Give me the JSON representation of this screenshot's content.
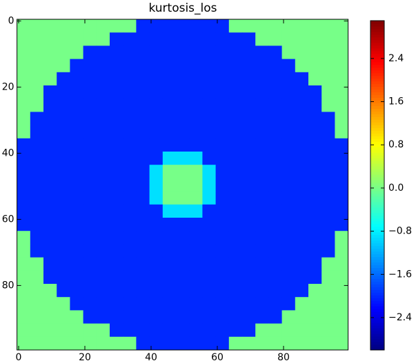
{
  "chart_data": {
    "type": "heatmap",
    "title": "kurtosis_los",
    "colormap": "jet",
    "xlim": [
      -0.5,
      99.5
    ],
    "ylim": [
      99.5,
      -0.5
    ],
    "xticks": [
      0,
      20,
      40,
      60,
      80
    ],
    "yticks": [
      0,
      20,
      40,
      60,
      80
    ],
    "values": [
      [
        0,
        0,
        0,
        0,
        0,
        0,
        0,
        0,
        0,
        -2,
        -2,
        -2,
        -2,
        -2,
        -2,
        -2,
        0,
        0,
        0,
        0,
        0,
        0,
        0,
        0,
        0
      ],
      [
        0,
        0,
        0,
        0,
        0,
        0,
        0,
        -2,
        -2,
        -2,
        -2,
        -2,
        -2,
        -2,
        -2,
        -2,
        -2,
        -2,
        0,
        0,
        0,
        0,
        0,
        0,
        0
      ],
      [
        0,
        0,
        0,
        0,
        0,
        -2,
        -2,
        -2,
        -2,
        -2,
        -2,
        -2,
        -2,
        -2,
        -2,
        -2,
        -2,
        -2,
        -2,
        -2,
        0,
        0,
        0,
        0,
        0
      ],
      [
        0,
        0,
        0,
        0,
        -2,
        -2,
        -2,
        -2,
        -2,
        -2,
        -2,
        -2,
        -2,
        -2,
        -2,
        -2,
        -2,
        -2,
        -2,
        -2,
        -2,
        0,
        0,
        0,
        0
      ],
      [
        0,
        0,
        0,
        -2,
        -2,
        -2,
        -2,
        -2,
        -2,
        -2,
        -2,
        -2,
        -2,
        -2,
        -2,
        -2,
        -2,
        -2,
        -2,
        -2,
        -2,
        -2,
        0,
        0,
        0
      ],
      [
        0,
        0,
        -2,
        -2,
        -2,
        -2,
        -2,
        -2,
        -2,
        -2,
        -2,
        -2,
        -2,
        -2,
        -2,
        -2,
        -2,
        -2,
        -2,
        -2,
        -2,
        -2,
        -2,
        0,
        0
      ],
      [
        0,
        0,
        -2,
        -2,
        -2,
        -2,
        -2,
        -2,
        -2,
        -2,
        -2,
        -2,
        -2,
        -2,
        -2,
        -2,
        -2,
        -2,
        -2,
        -2,
        -2,
        -2,
        -2,
        0,
        0
      ],
      [
        0,
        -2,
        -2,
        -2,
        -2,
        -2,
        -2,
        -2,
        -2,
        -2,
        -2,
        -2,
        -2,
        -2,
        -2,
        -2,
        -2,
        -2,
        -2,
        -2,
        -2,
        -2,
        -2,
        -2,
        0
      ],
      [
        0,
        -2,
        -2,
        -2,
        -2,
        -2,
        -2,
        -2,
        -2,
        -2,
        -2,
        -2,
        -2,
        -2,
        -2,
        -2,
        -2,
        -2,
        -2,
        -2,
        -2,
        -2,
        -2,
        -2,
        0
      ],
      [
        -2,
        -2,
        -2,
        -2,
        -2,
        -2,
        -2,
        -2,
        -2,
        -2,
        -2,
        -2,
        -2,
        -2,
        -2,
        -2,
        -2,
        -2,
        -2,
        -2,
        -2,
        -2,
        -2,
        -2,
        -2
      ],
      [
        -2,
        -2,
        -2,
        -2,
        -2,
        -2,
        -2,
        -2,
        -2,
        -2,
        -2,
        -0.9,
        -0.9,
        -0.9,
        -2,
        -2,
        -2,
        -2,
        -2,
        -2,
        -2,
        -2,
        -2,
        -2,
        -2
      ],
      [
        -2,
        -2,
        -2,
        -2,
        -2,
        -2,
        -2,
        -2,
        -2,
        -2,
        -0.9,
        0,
        0,
        0,
        -0.9,
        -2,
        -2,
        -2,
        -2,
        -2,
        -2,
        -2,
        -2,
        -2,
        -2
      ],
      [
        -2,
        -2,
        -2,
        -2,
        -2,
        -2,
        -2,
        -2,
        -2,
        -2,
        -0.9,
        0,
        0,
        0,
        -0.9,
        -2,
        -2,
        -2,
        -2,
        -2,
        -2,
        -2,
        -2,
        -2,
        -2
      ],
      [
        -2,
        -2,
        -2,
        -2,
        -2,
        -2,
        -2,
        -2,
        -2,
        -2,
        -0.9,
        0,
        0,
        0,
        -0.9,
        -2,
        -2,
        -2,
        -2,
        -2,
        -2,
        -2,
        -2,
        -2,
        -2
      ],
      [
        -2,
        -2,
        -2,
        -2,
        -2,
        -2,
        -2,
        -2,
        -2,
        -2,
        -2,
        -0.9,
        -0.9,
        -0.9,
        -2,
        -2,
        -2,
        -2,
        -2,
        -2,
        -2,
        -2,
        -2,
        -2,
        -2
      ],
      [
        -2,
        -2,
        -2,
        -2,
        -2,
        -2,
        -2,
        -2,
        -2,
        -2,
        -2,
        -2,
        -2,
        -2,
        -2,
        -2,
        -2,
        -2,
        -2,
        -2,
        -2,
        -2,
        -2,
        -2,
        -2
      ],
      [
        0,
        -2,
        -2,
        -2,
        -2,
        -2,
        -2,
        -2,
        -2,
        -2,
        -2,
        -2,
        -2,
        -2,
        -2,
        -2,
        -2,
        -2,
        -2,
        -2,
        -2,
        -2,
        -2,
        -2,
        0
      ],
      [
        0,
        -2,
        -2,
        -2,
        -2,
        -2,
        -2,
        -2,
        -2,
        -2,
        -2,
        -2,
        -2,
        -2,
        -2,
        -2,
        -2,
        -2,
        -2,
        -2,
        -2,
        -2,
        -2,
        -2,
        0
      ],
      [
        0,
        0,
        -2,
        -2,
        -2,
        -2,
        -2,
        -2,
        -2,
        -2,
        -2,
        -2,
        -2,
        -2,
        -2,
        -2,
        -2,
        -2,
        -2,
        -2,
        -2,
        -2,
        -2,
        0,
        0
      ],
      [
        0,
        0,
        -2,
        -2,
        -2,
        -2,
        -2,
        -2,
        -2,
        -2,
        -2,
        -2,
        -2,
        -2,
        -2,
        -2,
        -2,
        -2,
        -2,
        -2,
        -2,
        -2,
        -2,
        0,
        0
      ],
      [
        0,
        0,
        0,
        -2,
        -2,
        -2,
        -2,
        -2,
        -2,
        -2,
        -2,
        -2,
        -2,
        -2,
        -2,
        -2,
        -2,
        -2,
        -2,
        -2,
        -2,
        -2,
        0,
        0,
        0
      ],
      [
        0,
        0,
        0,
        0,
        -2,
        -2,
        -2,
        -2,
        -2,
        -2,
        -2,
        -2,
        -2,
        -2,
        -2,
        -2,
        -2,
        -2,
        -2,
        -2,
        -2,
        0,
        0,
        0,
        0
      ],
      [
        0,
        0,
        0,
        0,
        0,
        -2,
        -2,
        -2,
        -2,
        -2,
        -2,
        -2,
        -2,
        -2,
        -2,
        -2,
        -2,
        -2,
        -2,
        -2,
        0,
        0,
        0,
        0,
        0
      ],
      [
        0,
        0,
        0,
        0,
        0,
        0,
        0,
        -2,
        -2,
        -2,
        -2,
        -2,
        -2,
        -2,
        -2,
        -2,
        -2,
        -2,
        0,
        0,
        0,
        0,
        0,
        0,
        0
      ],
      [
        0,
        0,
        0,
        0,
        0,
        0,
        0,
        0,
        0,
        -2,
        -2,
        -2,
        -2,
        -2,
        -2,
        -2,
        0,
        0,
        0,
        0,
        0,
        0,
        0,
        0,
        0
      ]
    ],
    "colorbar": {
      "clim": [
        -3.0,
        3.1
      ],
      "ticks": [
        {
          "value": -2.4,
          "label": "−2.4"
        },
        {
          "value": -1.6,
          "label": "−1.6"
        },
        {
          "value": -0.8,
          "label": "−0.8"
        },
        {
          "value": 0,
          "label": "0.0"
        },
        0.8,
        1.6,
        2.4
      ]
    }
  }
}
